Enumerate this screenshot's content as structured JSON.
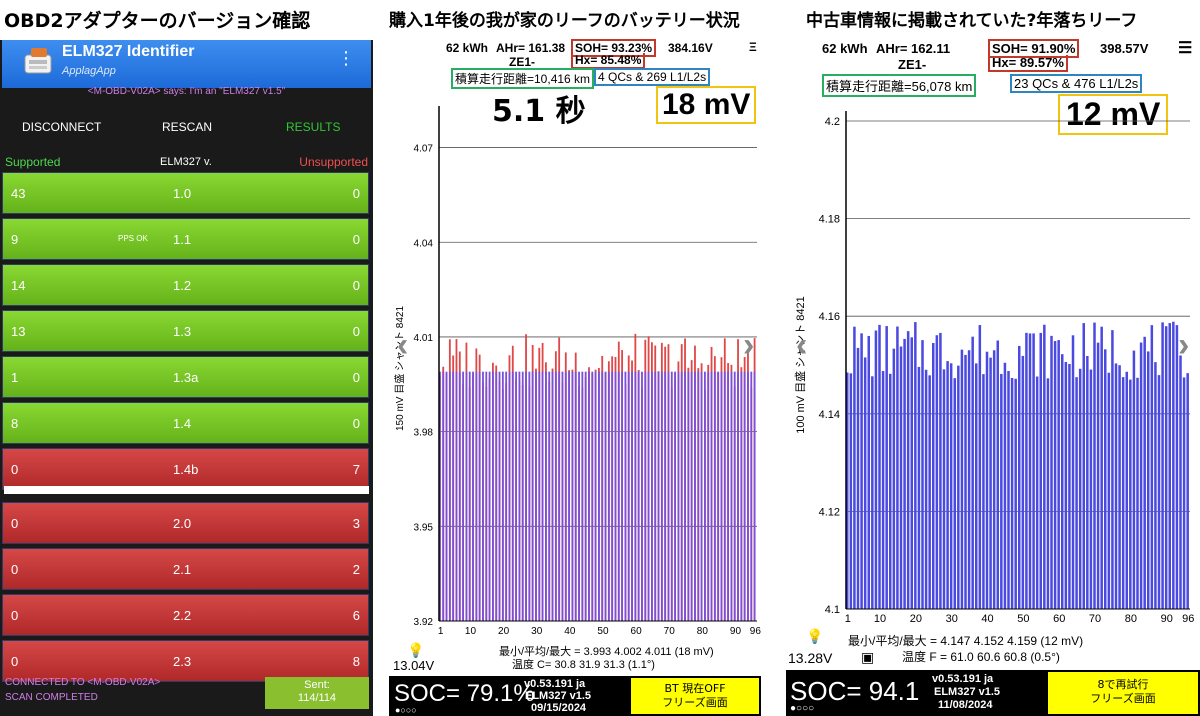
{
  "titles": {
    "left": "OBD2アダプターのバージョン確認",
    "middle": "購入1年後の我が家のリーフのバッテリー状況",
    "right": "中古車情報に掲載されていた?年落ちリーフ"
  },
  "obd_app": {
    "app_name": "ELM327 Identifier",
    "app_subtitle": "ApplagApp",
    "menu_icon": "⋮",
    "device_message": "<M-OBD-V02A> says: I'm an \"ELM327 v1.5\"",
    "buttons": {
      "disconnect": "DISCONNECT",
      "rescan": "RESCAN",
      "results": "RESULTS"
    },
    "headers": {
      "supported": "Supported",
      "version": "ELM327 v.",
      "unsupported": "Unsupported"
    },
    "rows": [
      {
        "supported": "43",
        "version": "1.0",
        "unsupported": "0",
        "status": "green",
        "note": ""
      },
      {
        "supported": "9",
        "version": "1.1",
        "unsupported": "0",
        "status": "green",
        "note": "PPS OK"
      },
      {
        "supported": "14",
        "version": "1.2",
        "unsupported": "0",
        "status": "green",
        "note": ""
      },
      {
        "supported": "13",
        "version": "1.3",
        "unsupported": "0",
        "status": "green",
        "note": ""
      },
      {
        "supported": "1",
        "version": "1.3a",
        "unsupported": "0",
        "status": "green",
        "note": ""
      },
      {
        "supported": "8",
        "version": "1.4",
        "unsupported": "0",
        "status": "green",
        "note": ""
      },
      {
        "supported": "0",
        "version": "1.4b",
        "unsupported": "7",
        "status": "red",
        "note": ""
      },
      {
        "supported": "0",
        "version": "2.0",
        "unsupported": "3",
        "status": "red",
        "note": ""
      },
      {
        "supported": "0",
        "version": "2.1",
        "unsupported": "2",
        "status": "red",
        "note": ""
      },
      {
        "supported": "0",
        "version": "2.2",
        "unsupported": "6",
        "status": "red",
        "note": ""
      },
      {
        "supported": "0",
        "version": "2.3",
        "unsupported": "8",
        "status": "red",
        "note": ""
      }
    ],
    "status_connected": "CONNECTED TO <M-OBD-V02A>",
    "status_scan": "SCAN COMPLETED",
    "sent_label": "Sent:",
    "sent_value": "114/114"
  },
  "leafspy_middle": {
    "capacity": "62 kWh",
    "ahr": "AHr= 161.38",
    "soh": "SOH= 93.23%",
    "voltage": "384.16V",
    "model": "ZE1-",
    "hx": "Hx= 85.48%",
    "odometer": "積算走行距離=10,416 km",
    "charges": "4 QCs & 269 L1/L2s",
    "annotation_time": "5.1 秒",
    "annotation_mv": "18 mV",
    "stats_line": "最小/平均/最大 = 3.993 4.002 4.011  (18 mV)",
    "temp_line": "温度 C= 30.8  31.9  31.3  (1.1°)",
    "aux_voltage": "13.04V",
    "soc": "SOC= 79.1%",
    "app_version": "v0.53.191 ja",
    "elm_version": "ELM327 v1.5",
    "date": "09/15/2024",
    "button_text_1": "BT 現在OFF",
    "button_text_2": "フリーズ画面",
    "dots": "●○○○",
    "nav_left": "‹",
    "nav_right": "›",
    "menu_icon": "Ξ",
    "colors": {
      "soh_box": "#c0392b",
      "odo_box": "#27ae60",
      "qc_box": "#2e86c1",
      "mv_box": "#f1c40f"
    }
  },
  "leafspy_right": {
    "capacity": "62 kWh",
    "ahr": "AHr= 162.11",
    "soh": "SOH= 91.90%",
    "voltage": "398.57V",
    "model": "ZE1-",
    "hx": "Hx= 89.57%",
    "odometer": "積算走行距離=56,078 km",
    "charges": "23 QCs & 476 L1/L2s",
    "annotation_mv": "12 mV",
    "stats_line": "最小/平均/最大 = 4.147 4.152 4.159  (12 mV)",
    "temp_line": "温度 F = 61.0  60.6  60.8  (0.5°)",
    "aux_voltage": "13.28V",
    "soc": "SOC= 94.1",
    "app_version": "v0.53.191 ja",
    "elm_version": "ELM327 v1.5",
    "date": "11/08/2024",
    "button_text_1": "8で再試行",
    "button_text_2": "フリーズ画面",
    "dots": "●○○○",
    "nav_left": "‹",
    "nav_right": "›",
    "menu_icon": "☰"
  },
  "chart_data": [
    {
      "type": "bar",
      "ylabel": "150 mV 目盛 シャント 8421",
      "ylim": [
        3.92,
        4.08
      ],
      "yticks": [
        3.92,
        3.95,
        3.98,
        4.01,
        4.04,
        4.07
      ],
      "xticks": [
        1,
        10,
        20,
        30,
        40,
        50,
        60,
        70,
        80,
        90,
        96
      ],
      "x": [
        1,
        96
      ],
      "base_mv": 3.999,
      "min": 3.993,
      "avg": 4.002,
      "max": 4.011,
      "colors": {
        "cell": "#7b4fd8",
        "shunt": "#e04848"
      }
    },
    {
      "type": "bar",
      "ylabel": "100 mV 目盛 シャント 8421",
      "ylim": [
        4.1,
        4.2
      ],
      "yticks": [
        4.1,
        4.12,
        4.14,
        4.16,
        4.18,
        4.2
      ],
      "xticks": [
        1,
        10,
        20,
        30,
        40,
        50,
        60,
        70,
        80,
        90,
        96
      ],
      "x": [
        1,
        96
      ],
      "min": 4.147,
      "avg": 4.152,
      "max": 4.159,
      "colors": {
        "cell": "#4a4ae0"
      }
    }
  ]
}
